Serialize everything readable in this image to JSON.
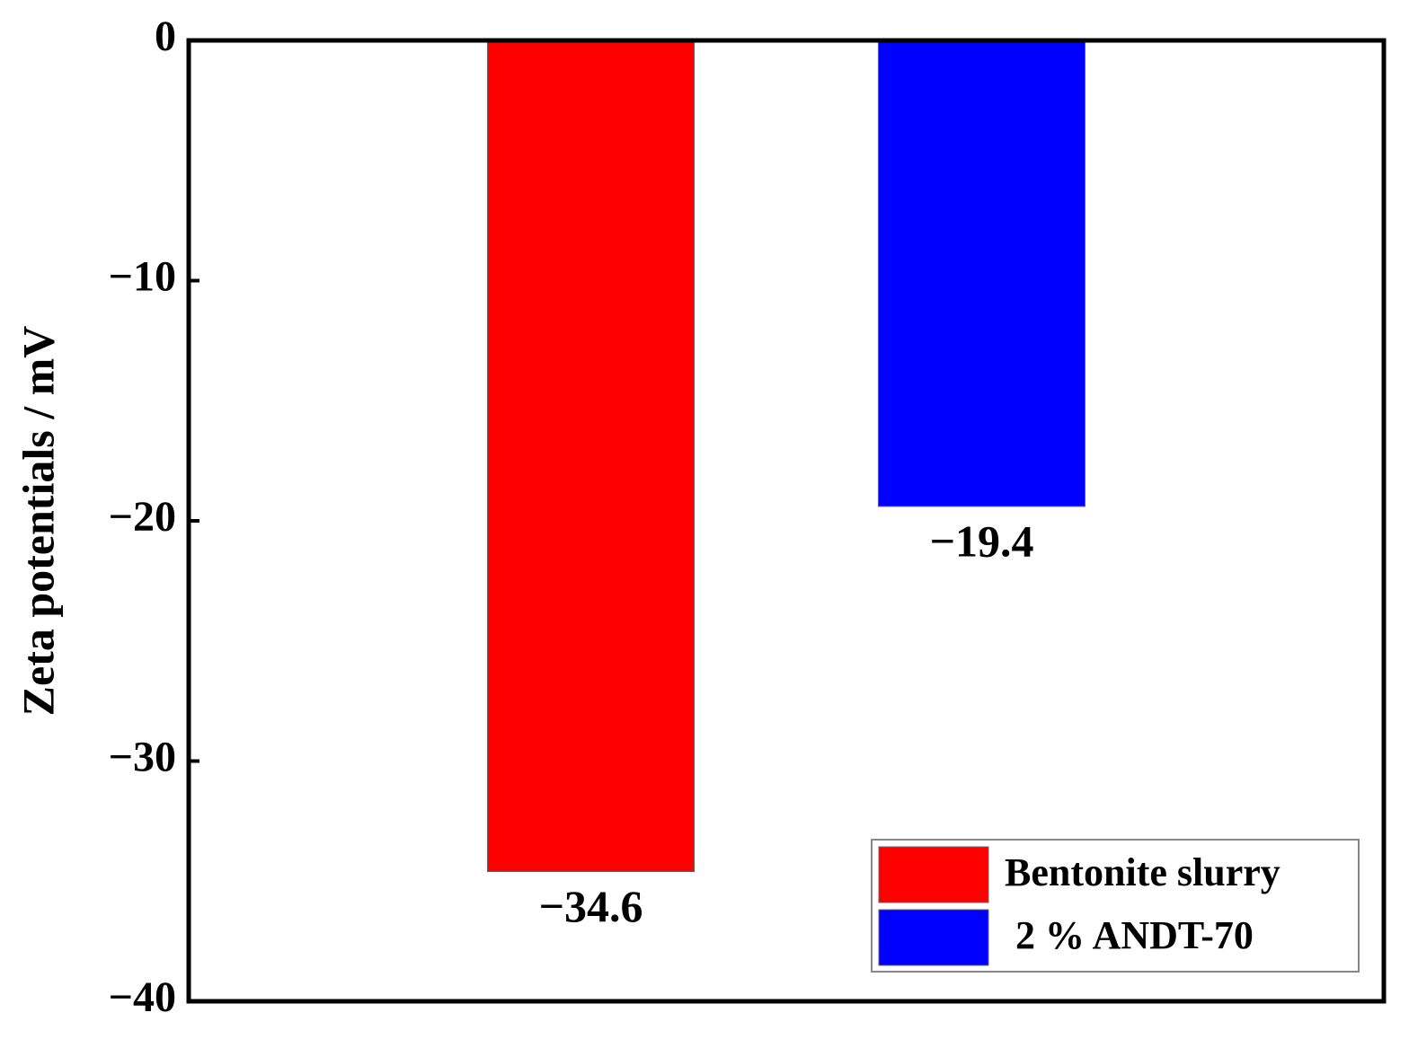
{
  "chart_data": {
    "type": "bar",
    "y_label": "Zeta potentials / mV",
    "categories": [
      null
    ],
    "series": [
      {
        "name": "Bentonite slurry",
        "color": "#ff0000",
        "values": [
          -34.6
        ],
        "value_labels": [
          "−34.6"
        ]
      },
      {
        "name": "2 % ANDT-70",
        "color": "#0000ff",
        "values": [
          -19.4
        ],
        "value_labels": [
          "−19.4"
        ]
      }
    ],
    "ylim": [
      -40,
      0
    ],
    "yticks": [
      {
        "value": -40,
        "label": "−40"
      },
      {
        "value": -30,
        "label": "−30"
      },
      {
        "value": -20,
        "label": "−20"
      },
      {
        "value": -10,
        "label": "−10"
      },
      0
    ],
    "legend": "lower right"
  }
}
